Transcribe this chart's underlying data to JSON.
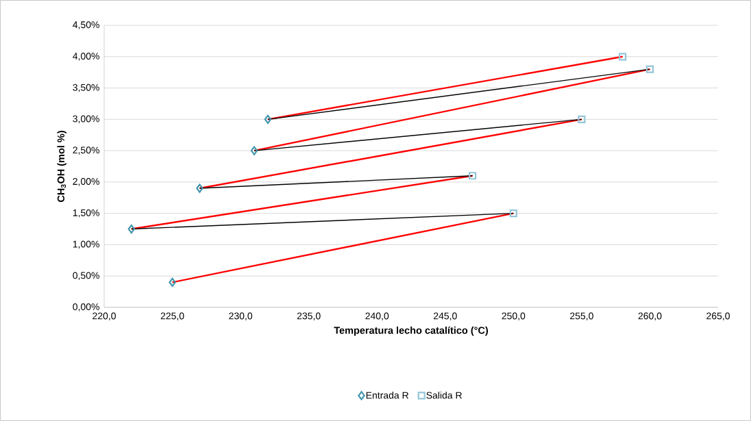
{
  "chart_data": {
    "type": "scatter",
    "xlabel": "Temperatura lecho catalítico (°C)",
    "ylabel": "CH$_{3}$OH (mol %)",
    "xlim": [
      220,
      265
    ],
    "ylim": [
      0,
      4.5
    ],
    "xticks": [
      {
        "value": 220,
        "label": "220,0"
      },
      {
        "value": 225,
        "label": "225,0"
      },
      {
        "value": 230,
        "label": "230,0"
      },
      {
        "value": 235,
        "label": "235,0"
      },
      {
        "value": 240,
        "label": "240,0"
      },
      {
        "value": 245,
        "label": "245,0"
      },
      {
        "value": 250,
        "label": "250,0"
      },
      {
        "value": 255,
        "label": "255,0"
      },
      {
        "value": 260,
        "label": "260,0"
      },
      {
        "value": 265,
        "label": "265,0"
      }
    ],
    "yticks": [
      {
        "value": 0,
        "label": "0,00%"
      },
      {
        "value": 0.5,
        "label": "0,50%"
      },
      {
        "value": 1,
        "label": "1,00%"
      },
      {
        "value": 1.5,
        "label": "1,50%"
      },
      {
        "value": 2,
        "label": "2,00%"
      },
      {
        "value": 2.5,
        "label": "2,50%"
      },
      {
        "value": 3,
        "label": "3,00%"
      },
      {
        "value": 3.5,
        "label": "3,50%"
      },
      {
        "value": 4,
        "label": "4,00%"
      },
      {
        "value": 4.5,
        "label": "4,50%"
      }
    ],
    "grid": "y",
    "legend": "bottom",
    "series": [
      {
        "name": "Entrada R",
        "color": "#3f97ad",
        "marker": "diamond",
        "x": [
          225,
          222,
          227,
          231,
          232
        ],
        "values": [
          0.4,
          1.25,
          1.9,
          2.5,
          3.0
        ]
      },
      {
        "name": "Salida R",
        "color": "#93c6d8",
        "marker": "square",
        "x": [
          250,
          247,
          255,
          260,
          258
        ],
        "values": [
          1.5,
          2.1,
          3.0,
          3.8,
          4.0
        ]
      },
      {
        "type": "line",
        "color": "#ff0000",
        "marker": "none",
        "x": [
          225,
          250
        ],
        "values": [
          0.4,
          1.5
        ]
      },
      {
        "type": "line",
        "color": "#ff0000",
        "marker": "none",
        "x": [
          222,
          247
        ],
        "values": [
          1.25,
          2.1
        ]
      },
      {
        "type": "line",
        "color": "#ff0000",
        "marker": "none",
        "x": [
          227,
          255
        ],
        "values": [
          1.9,
          3.0
        ]
      },
      {
        "type": "line",
        "color": "#ff0000",
        "marker": "none",
        "x": [
          231,
          260
        ],
        "values": [
          2.5,
          3.8
        ]
      },
      {
        "type": "line",
        "color": "#ff0000",
        "marker": "none",
        "x": [
          232,
          258
        ],
        "values": [
          3.0,
          4.0
        ]
      },
      {
        "type": "line",
        "color": "#000000",
        "marker": "none",
        "x": [
          222,
          250
        ],
        "values": [
          1.25,
          1.5
        ]
      },
      {
        "type": "line",
        "color": "#000000",
        "marker": "none",
        "x": [
          227,
          247
        ],
        "values": [
          1.9,
          2.1
        ]
      },
      {
        "type": "line",
        "color": "#000000",
        "marker": "none",
        "x": [
          231,
          255
        ],
        "values": [
          2.5,
          3.0
        ]
      },
      {
        "type": "line",
        "color": "#000000",
        "marker": "none",
        "x": [
          232,
          260
        ],
        "values": [
          3.0,
          3.8
        ]
      }
    ]
  }
}
